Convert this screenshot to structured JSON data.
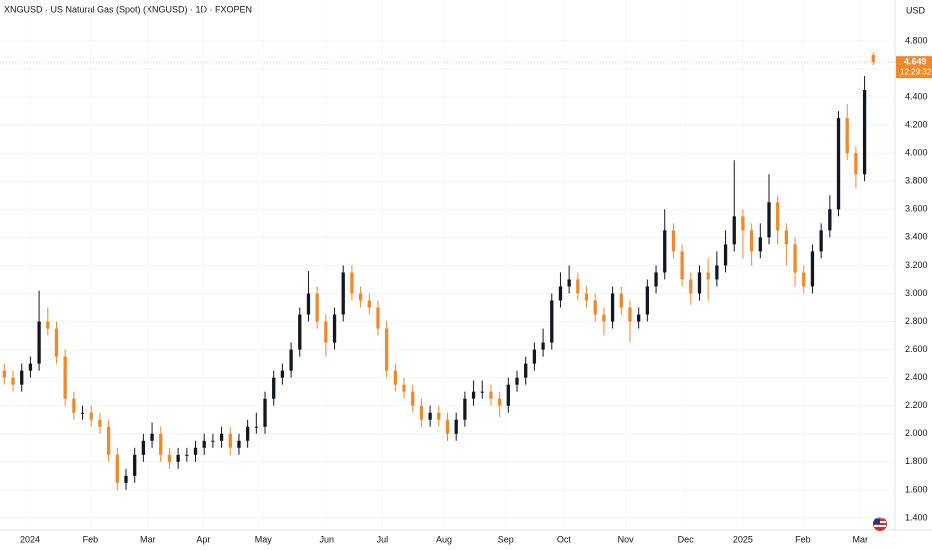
{
  "chart_data": {
    "type": "candlestick",
    "title": "XNGUSD · US Natural Gas (Spot) (XNGUSD) · 1D · FXOPEN",
    "currency": "USD",
    "open": [
      2.45,
      2.4,
      2.35,
      2.45,
      2.5,
      2.8,
      2.75,
      2.55,
      2.25,
      2.15,
      2.15,
      2.1,
      2.05,
      1.85,
      1.65,
      1.7,
      1.85,
      1.95,
      2.0,
      1.85,
      1.8,
      1.85,
      1.85,
      1.9,
      1.95,
      1.95,
      2.0,
      1.9,
      1.95,
      2.05,
      2.05,
      2.25,
      2.4,
      2.45,
      2.6,
      2.85,
      3.0,
      2.8,
      2.65,
      2.85,
      3.15,
      3.0,
      2.95,
      2.9,
      2.75,
      2.45,
      2.35,
      2.3,
      2.2,
      2.1,
      2.15,
      2.1,
      2.0,
      2.1,
      2.25,
      2.3,
      2.3,
      2.25,
      2.2,
      2.35,
      2.4,
      2.5,
      2.6,
      2.65,
      2.95,
      3.05,
      3.1,
      3.0,
      2.95,
      2.85,
      2.8,
      3.0,
      2.9,
      2.8,
      2.85,
      3.05,
      3.15,
      3.45,
      3.3,
      3.1,
      3.0,
      3.15,
      3.1,
      3.2,
      3.35,
      3.55,
      3.45,
      3.3,
      3.4,
      3.65,
      3.45,
      3.35,
      3.15,
      3.05,
      3.3,
      3.45,
      3.6,
      4.25,
      4.0,
      3.85,
      4.7
    ],
    "high": [
      2.5,
      2.45,
      2.5,
      2.55,
      3.02,
      2.9,
      2.8,
      2.6,
      2.3,
      2.2,
      2.2,
      2.15,
      2.1,
      1.9,
      1.75,
      1.9,
      2.0,
      2.08,
      2.05,
      1.9,
      1.9,
      1.9,
      1.95,
      2.0,
      2.0,
      2.05,
      2.05,
      2.0,
      2.1,
      2.15,
      2.3,
      2.45,
      2.5,
      2.65,
      2.9,
      3.16,
      3.05,
      2.85,
      2.9,
      3.2,
      3.2,
      3.05,
      3.0,
      2.95,
      2.8,
      2.5,
      2.4,
      2.35,
      2.25,
      2.2,
      2.2,
      2.15,
      2.15,
      2.3,
      2.38,
      2.38,
      2.35,
      2.3,
      2.4,
      2.45,
      2.55,
      2.65,
      2.75,
      3.0,
      3.15,
      3.2,
      3.15,
      3.05,
      3.0,
      2.9,
      3.05,
      3.05,
      2.95,
      2.9,
      3.1,
      3.2,
      3.6,
      3.5,
      3.35,
      3.15,
      3.2,
      3.25,
      3.3,
      3.45,
      3.95,
      3.6,
      3.5,
      3.5,
      3.85,
      3.7,
      3.5,
      3.4,
      3.2,
      3.35,
      3.5,
      3.7,
      4.3,
      4.35,
      4.05,
      4.55,
      4.72
    ],
    "low": [
      2.35,
      2.3,
      2.3,
      2.4,
      2.45,
      2.7,
      2.5,
      2.2,
      2.1,
      2.1,
      2.05,
      2.0,
      1.8,
      1.6,
      1.6,
      1.65,
      1.8,
      1.9,
      1.8,
      1.75,
      1.75,
      1.8,
      1.8,
      1.85,
      1.9,
      1.9,
      1.85,
      1.85,
      1.9,
      2.0,
      2.0,
      2.2,
      2.35,
      2.4,
      2.55,
      2.8,
      2.75,
      2.55,
      2.6,
      2.8,
      2.95,
      2.9,
      2.85,
      2.7,
      2.4,
      2.3,
      2.25,
      2.15,
      2.05,
      2.05,
      2.05,
      1.95,
      1.95,
      2.05,
      2.2,
      2.25,
      2.2,
      2.12,
      2.15,
      2.3,
      2.35,
      2.45,
      2.55,
      2.6,
      2.9,
      3.0,
      2.95,
      2.9,
      2.8,
      2.7,
      2.75,
      2.85,
      2.65,
      2.75,
      2.8,
      3.0,
      3.1,
      3.25,
      3.05,
      2.92,
      2.95,
      2.95,
      3.05,
      3.15,
      3.3,
      3.25,
      3.2,
      3.25,
      3.35,
      3.35,
      3.2,
      3.05,
      3.0,
      3.0,
      3.25,
      3.4,
      3.55,
      3.95,
      3.75,
      3.8,
      4.63
    ],
    "close": [
      2.4,
      2.35,
      2.45,
      2.5,
      2.8,
      2.75,
      2.55,
      2.25,
      2.15,
      2.15,
      2.1,
      2.05,
      1.85,
      1.65,
      1.7,
      1.85,
      1.95,
      2.0,
      1.85,
      1.8,
      1.85,
      1.85,
      1.9,
      1.95,
      1.95,
      2.0,
      1.9,
      1.95,
      2.05,
      2.05,
      2.25,
      2.4,
      2.45,
      2.6,
      2.85,
      3.0,
      2.8,
      2.65,
      2.85,
      3.15,
      3.0,
      2.95,
      2.9,
      2.75,
      2.45,
      2.35,
      2.3,
      2.2,
      2.1,
      2.15,
      2.1,
      2.0,
      2.1,
      2.25,
      2.3,
      2.3,
      2.25,
      2.2,
      2.35,
      2.4,
      2.5,
      2.6,
      2.65,
      2.95,
      3.05,
      3.1,
      3.0,
      2.95,
      2.85,
      2.8,
      3.0,
      2.9,
      2.8,
      2.85,
      3.05,
      3.15,
      3.45,
      3.3,
      3.1,
      3.0,
      3.15,
      3.1,
      3.2,
      3.35,
      3.55,
      3.45,
      3.3,
      3.4,
      3.65,
      3.45,
      3.35,
      3.15,
      3.05,
      3.3,
      3.45,
      3.6,
      4.25,
      4.0,
      3.85,
      4.45,
      4.649
    ],
    "up_color": "#131722",
    "down_color": "#f0892a",
    "xlim": [
      -0.5,
      102.5
    ],
    "xticks": [
      {
        "value": 2.95,
        "label": "2024"
      },
      {
        "value": 9.9,
        "label": "Feb"
      },
      {
        "value": 16.5,
        "label": "Mar"
      },
      {
        "value": 22.9,
        "label": "Apr"
      },
      {
        "value": 29.8,
        "label": "May"
      },
      {
        "value": 37.1,
        "label": "Jun"
      },
      {
        "value": 43.5,
        "label": "Jul"
      },
      {
        "value": 50.6,
        "label": "Aug"
      },
      {
        "value": 57.7,
        "label": "Sep"
      },
      {
        "value": 64.4,
        "label": "Oct"
      },
      {
        "value": 71.5,
        "label": "Nov"
      },
      {
        "value": 78.4,
        "label": "Dec"
      },
      {
        "value": 85,
        "label": "2025"
      },
      {
        "value": 91.9,
        "label": "Feb"
      },
      {
        "value": 98.5,
        "label": "Mar"
      }
    ],
    "ylim": [
      1.314,
      5.092
    ],
    "yticks": [
      {
        "value": 1.4,
        "label": "1.400"
      },
      {
        "value": 1.6,
        "label": "1.600"
      },
      {
        "value": 1.8,
        "label": "1.800"
      },
      {
        "value": 2.0,
        "label": "2.000"
      },
      {
        "value": 2.2,
        "label": "2.200"
      },
      {
        "value": 2.4,
        "label": "2.400"
      },
      {
        "value": 2.6,
        "label": "2.600"
      },
      {
        "value": 2.8,
        "label": "2.800"
      },
      {
        "value": 3.0,
        "label": "3.000"
      },
      {
        "value": 3.2,
        "label": "3.200"
      },
      {
        "value": 3.4,
        "label": "3.400"
      },
      {
        "value": 3.6,
        "label": "3.600"
      },
      {
        "value": 3.8,
        "label": "3.800"
      },
      {
        "value": 4.0,
        "label": "4.000"
      },
      {
        "value": 4.2,
        "label": "4.200"
      },
      {
        "value": 4.4,
        "label": "4.400"
      },
      {
        "value": 4.6,
        "label": "4.600"
      },
      {
        "value": 4.8,
        "label": "4.800"
      }
    ],
    "grid": true,
    "last_price": 4.649,
    "countdown": "12:29:32"
  }
}
